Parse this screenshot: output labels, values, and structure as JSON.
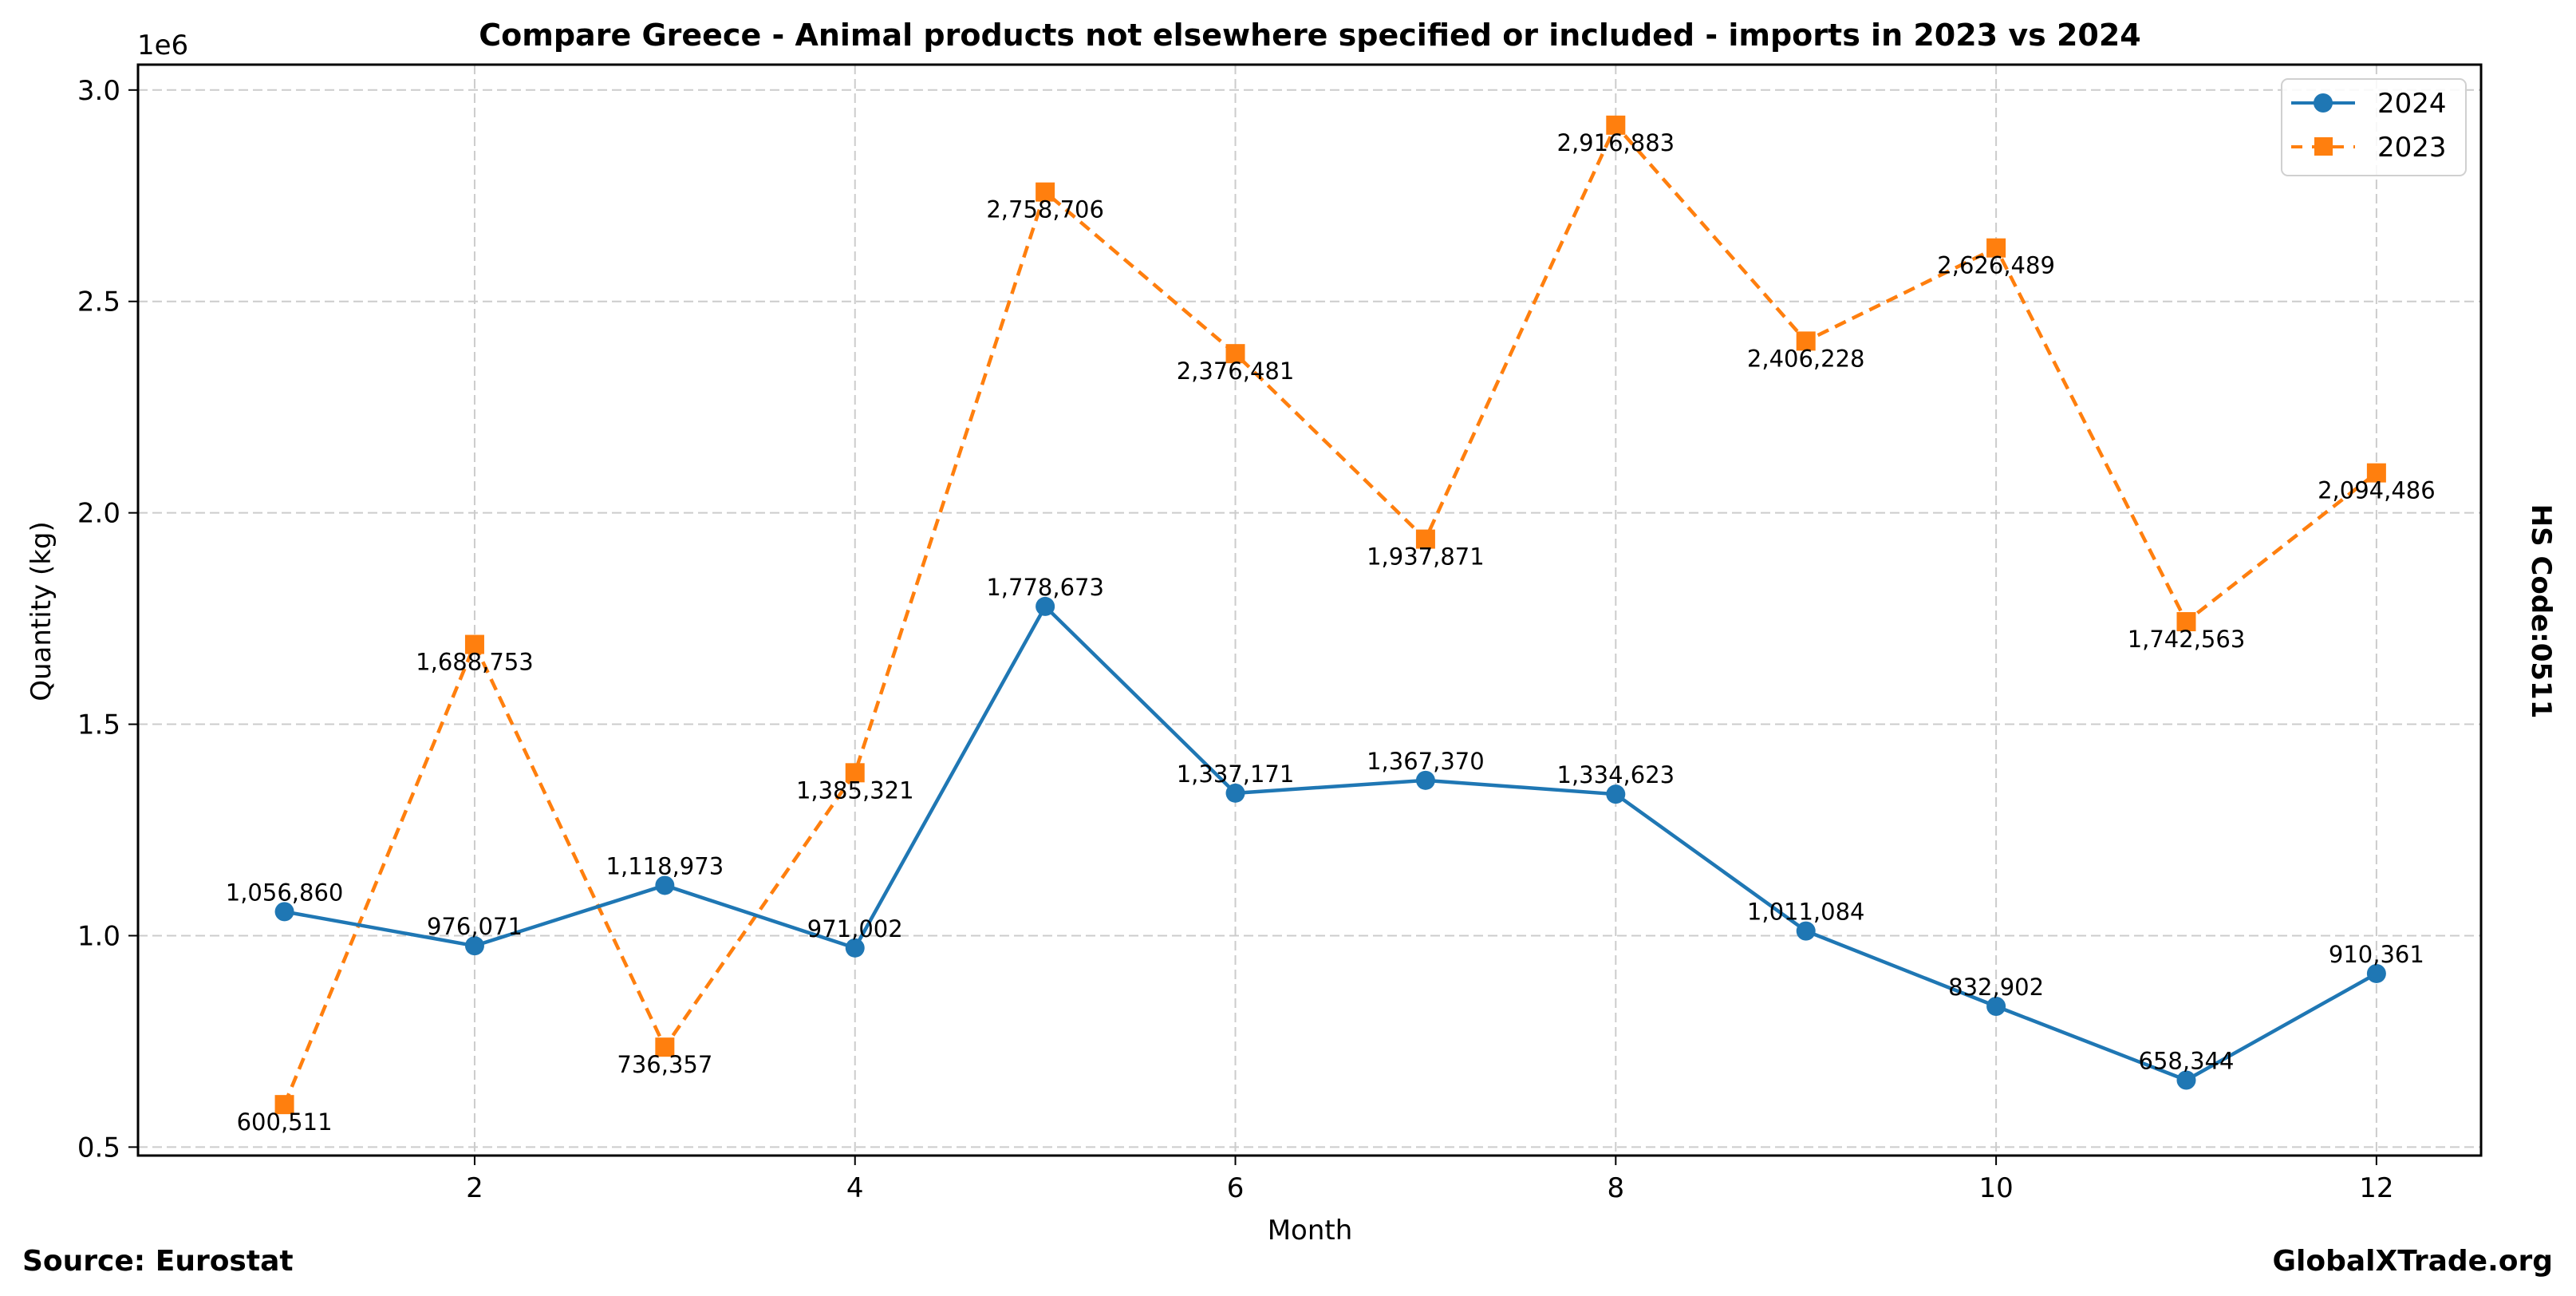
{
  "chart_data": {
    "type": "line",
    "title": "Compare Greece - Animal products not elsewhere specified or included - imports in 2023 vs 2024",
    "xlabel": "Month",
    "ylabel": "Quantity (kg)",
    "y_offset_label": "1e6",
    "y_scale": 1000000,
    "x": [
      1,
      2,
      3,
      4,
      5,
      6,
      7,
      8,
      9,
      10,
      11,
      12
    ],
    "xlim": [
      0.23,
      12.55
    ],
    "ylim": [
      480000,
      3060000
    ],
    "x_ticks": [
      2,
      4,
      6,
      8,
      10,
      12
    ],
    "x_tick_labels": [
      "2",
      "4",
      "6",
      "8",
      "10",
      "12"
    ],
    "y_ticks": [
      500000,
      1000000,
      1500000,
      2000000,
      2500000,
      3000000
    ],
    "y_tick_labels": [
      "0.5",
      "1.0",
      "1.5",
      "2.0",
      "2.5",
      "3.0"
    ],
    "grid": true,
    "legend_position": "top-right",
    "series": [
      {
        "name": "2024",
        "color": "#1f77b4",
        "marker": "circle",
        "line_style": "solid",
        "label_position": "above",
        "values": [
          1056860,
          976071,
          1118973,
          971002,
          1778673,
          1337171,
          1367370,
          1334623,
          1011084,
          832902,
          658344,
          910361
        ],
        "labels": [
          "1,056,860",
          "976,071",
          "1,118,973",
          "971,002",
          "1,778,673",
          "1,337,171",
          "1,367,370",
          "1,334,623",
          "1,011,084",
          "832,902",
          "658,344",
          "910,361"
        ]
      },
      {
        "name": "2023",
        "color": "#ff7f0e",
        "marker": "square",
        "line_style": "dashed",
        "label_position": "below",
        "values": [
          600511,
          1688753,
          736357,
          1385321,
          2758706,
          2376481,
          1937871,
          2916883,
          2406228,
          2626489,
          1742563,
          2094486
        ],
        "labels": [
          "600,511",
          "1,688,753",
          "736,357",
          "1,385,321",
          "2,758,706",
          "2,376,481",
          "1,937,871",
          "2,916,883",
          "2,406,228",
          "2,626,489",
          "1,742,563",
          "2,094,486"
        ]
      }
    ]
  },
  "footer": {
    "source": "Source: Eurostat",
    "brand": "GlobalXTrade.org"
  },
  "side_label": "HS Code:0511"
}
